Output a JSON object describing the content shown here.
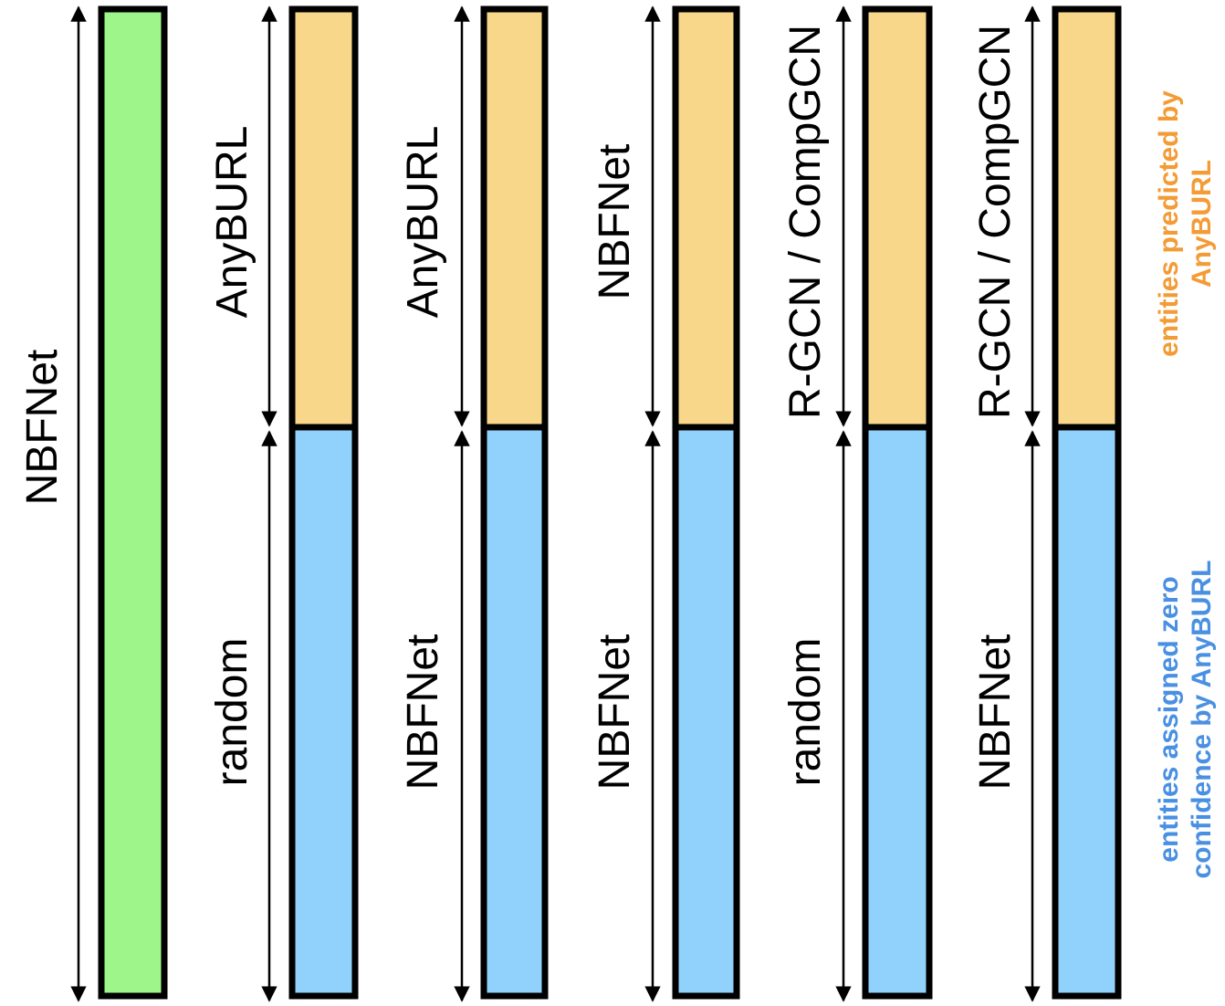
{
  "colors": {
    "full_bar": "#9ef58a",
    "top_segment": "#f8d78a",
    "bottom_segment": "#91d2fc",
    "outline": "#000000",
    "legend_top": "#f39b35",
    "legend_bottom": "#4a90e2"
  },
  "columns": [
    {
      "full": "NBFNet"
    },
    {
      "top": "AnyBURL",
      "bottom": "random"
    },
    {
      "top": "AnyBURL",
      "bottom": "NBFNet"
    },
    {
      "top": "NBFNet",
      "bottom": "NBFNet"
    },
    {
      "top": "R-GCN / CompGCN",
      "bottom": "random"
    },
    {
      "top": "R-GCN / CompGCN",
      "bottom": "NBFNet"
    }
  ],
  "legend": {
    "top": [
      "entities predicted by",
      "AnyBURL"
    ],
    "bottom": [
      "entities assigned zero",
      "confidence by AnyBURL"
    ]
  }
}
